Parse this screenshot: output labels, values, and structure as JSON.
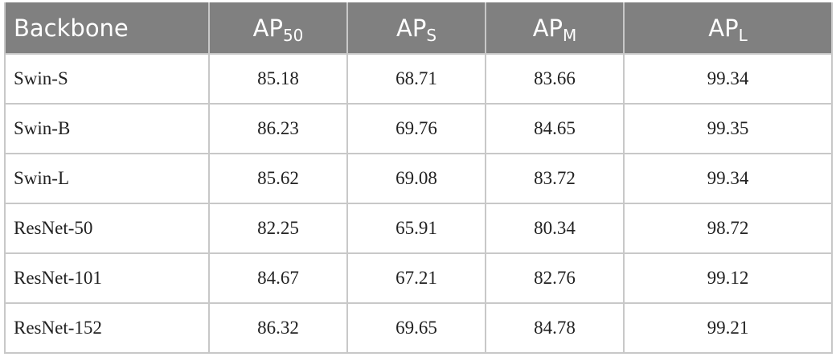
{
  "table": {
    "header": [
      {
        "text": "Backbone"
      },
      {
        "text": "AP",
        "sub": "50"
      },
      {
        "text": "AP",
        "sub": "S"
      },
      {
        "text": "AP",
        "sub": "M"
      },
      {
        "text": "AP",
        "sub": "L"
      }
    ],
    "rows": [
      [
        "Swin-S",
        "85.18",
        "68.71",
        "83.66",
        "99.34"
      ],
      [
        "Swin-B",
        "86.23",
        "69.76",
        "84.65",
        "99.35"
      ],
      [
        "Swin-L",
        "85.62",
        "69.08",
        "83.72",
        "99.34"
      ],
      [
        "ResNet-50",
        "82.25",
        "65.91",
        "80.34",
        "98.72"
      ],
      [
        "ResNet-101",
        "84.67",
        "67.21",
        "82.76",
        "99.12"
      ],
      [
        "ResNet-152",
        "86.32",
        "69.65",
        "84.78",
        "99.21"
      ]
    ]
  }
}
